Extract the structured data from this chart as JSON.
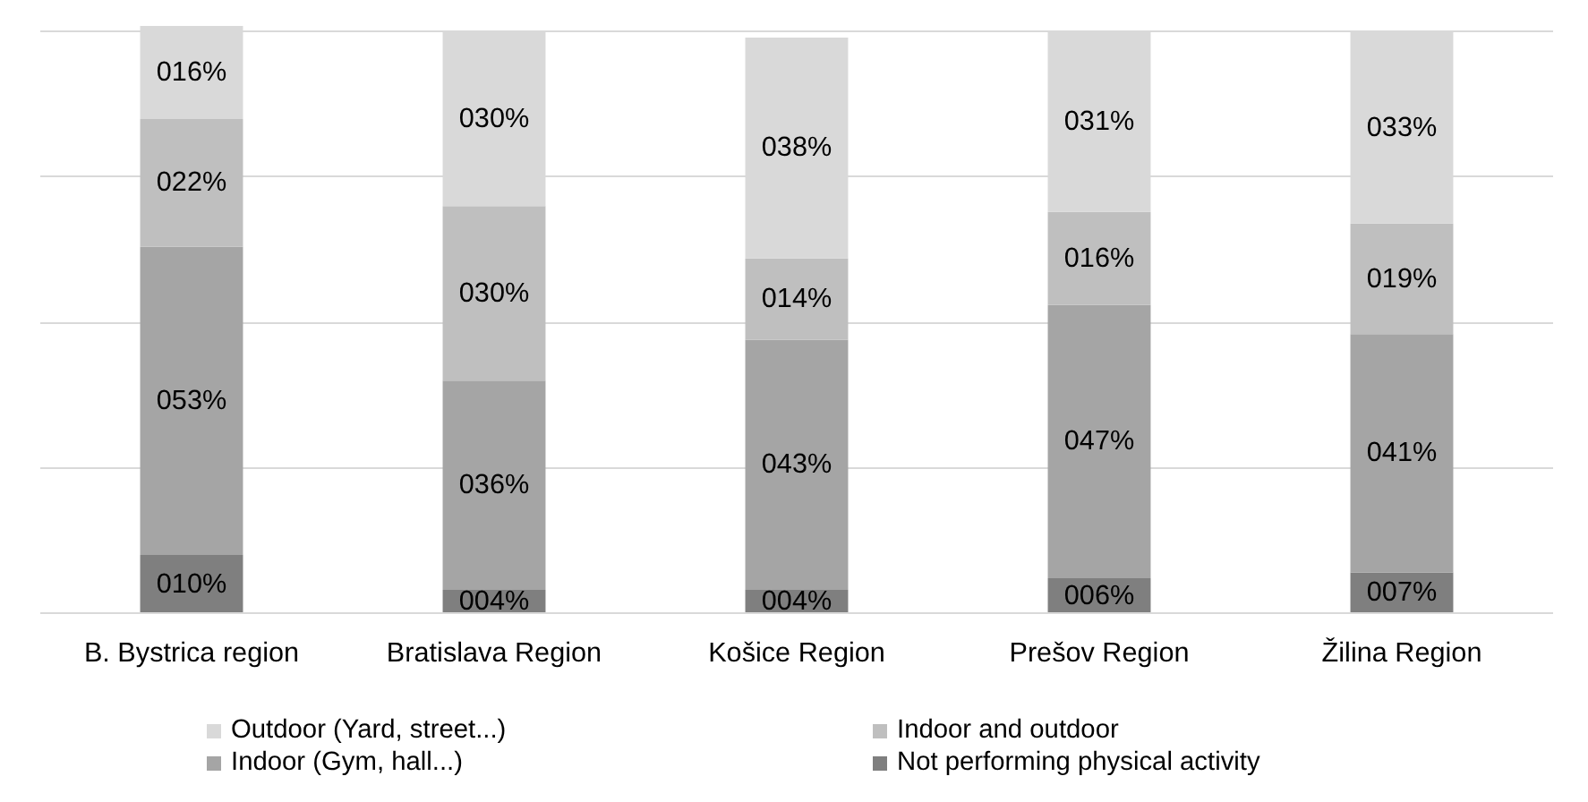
{
  "chart_data": {
    "type": "bar",
    "stacked": true,
    "categories": [
      "B. Bystrica region",
      "Bratislava Region",
      "Košice Region",
      "Prešov Region",
      "Žilina Region"
    ],
    "series": [
      {
        "name": "Not performing physical activity",
        "color": "#7f7f7f",
        "values": [
          10,
          4,
          4,
          6,
          7
        ],
        "value_labels": [
          "010%",
          "004%",
          "004%",
          "006%",
          "007%"
        ]
      },
      {
        "name": "Indoor (Gym, hall...)",
        "color": "#a5a5a5",
        "values": [
          53,
          36,
          43,
          47,
          41
        ],
        "value_labels": [
          "053%",
          "036%",
          "043%",
          "047%",
          "041%"
        ]
      },
      {
        "name": "Indoor and outdoor",
        "color": "#bfbfbf",
        "values": [
          22,
          30,
          14,
          16,
          19
        ],
        "value_labels": [
          "022%",
          "030%",
          "014%",
          "016%",
          "019%"
        ]
      },
      {
        "name": "Outdoor (Yard, street...)",
        "color": "#d9d9d9",
        "values": [
          16,
          30,
          38,
          31,
          33
        ],
        "value_labels": [
          "016%",
          "030%",
          "038%",
          "031%",
          "033%"
        ]
      }
    ],
    "ylim": [
      0,
      101
    ],
    "yticks": [
      {
        "value": 0,
        "label": null
      },
      {
        "value": 25,
        "label": null
      },
      {
        "value": 50,
        "label": null
      },
      {
        "value": 75,
        "label": null
      },
      {
        "value": 100,
        "label": null
      }
    ],
    "tick_labels": "x",
    "grid": "y",
    "legend": "bottom"
  }
}
